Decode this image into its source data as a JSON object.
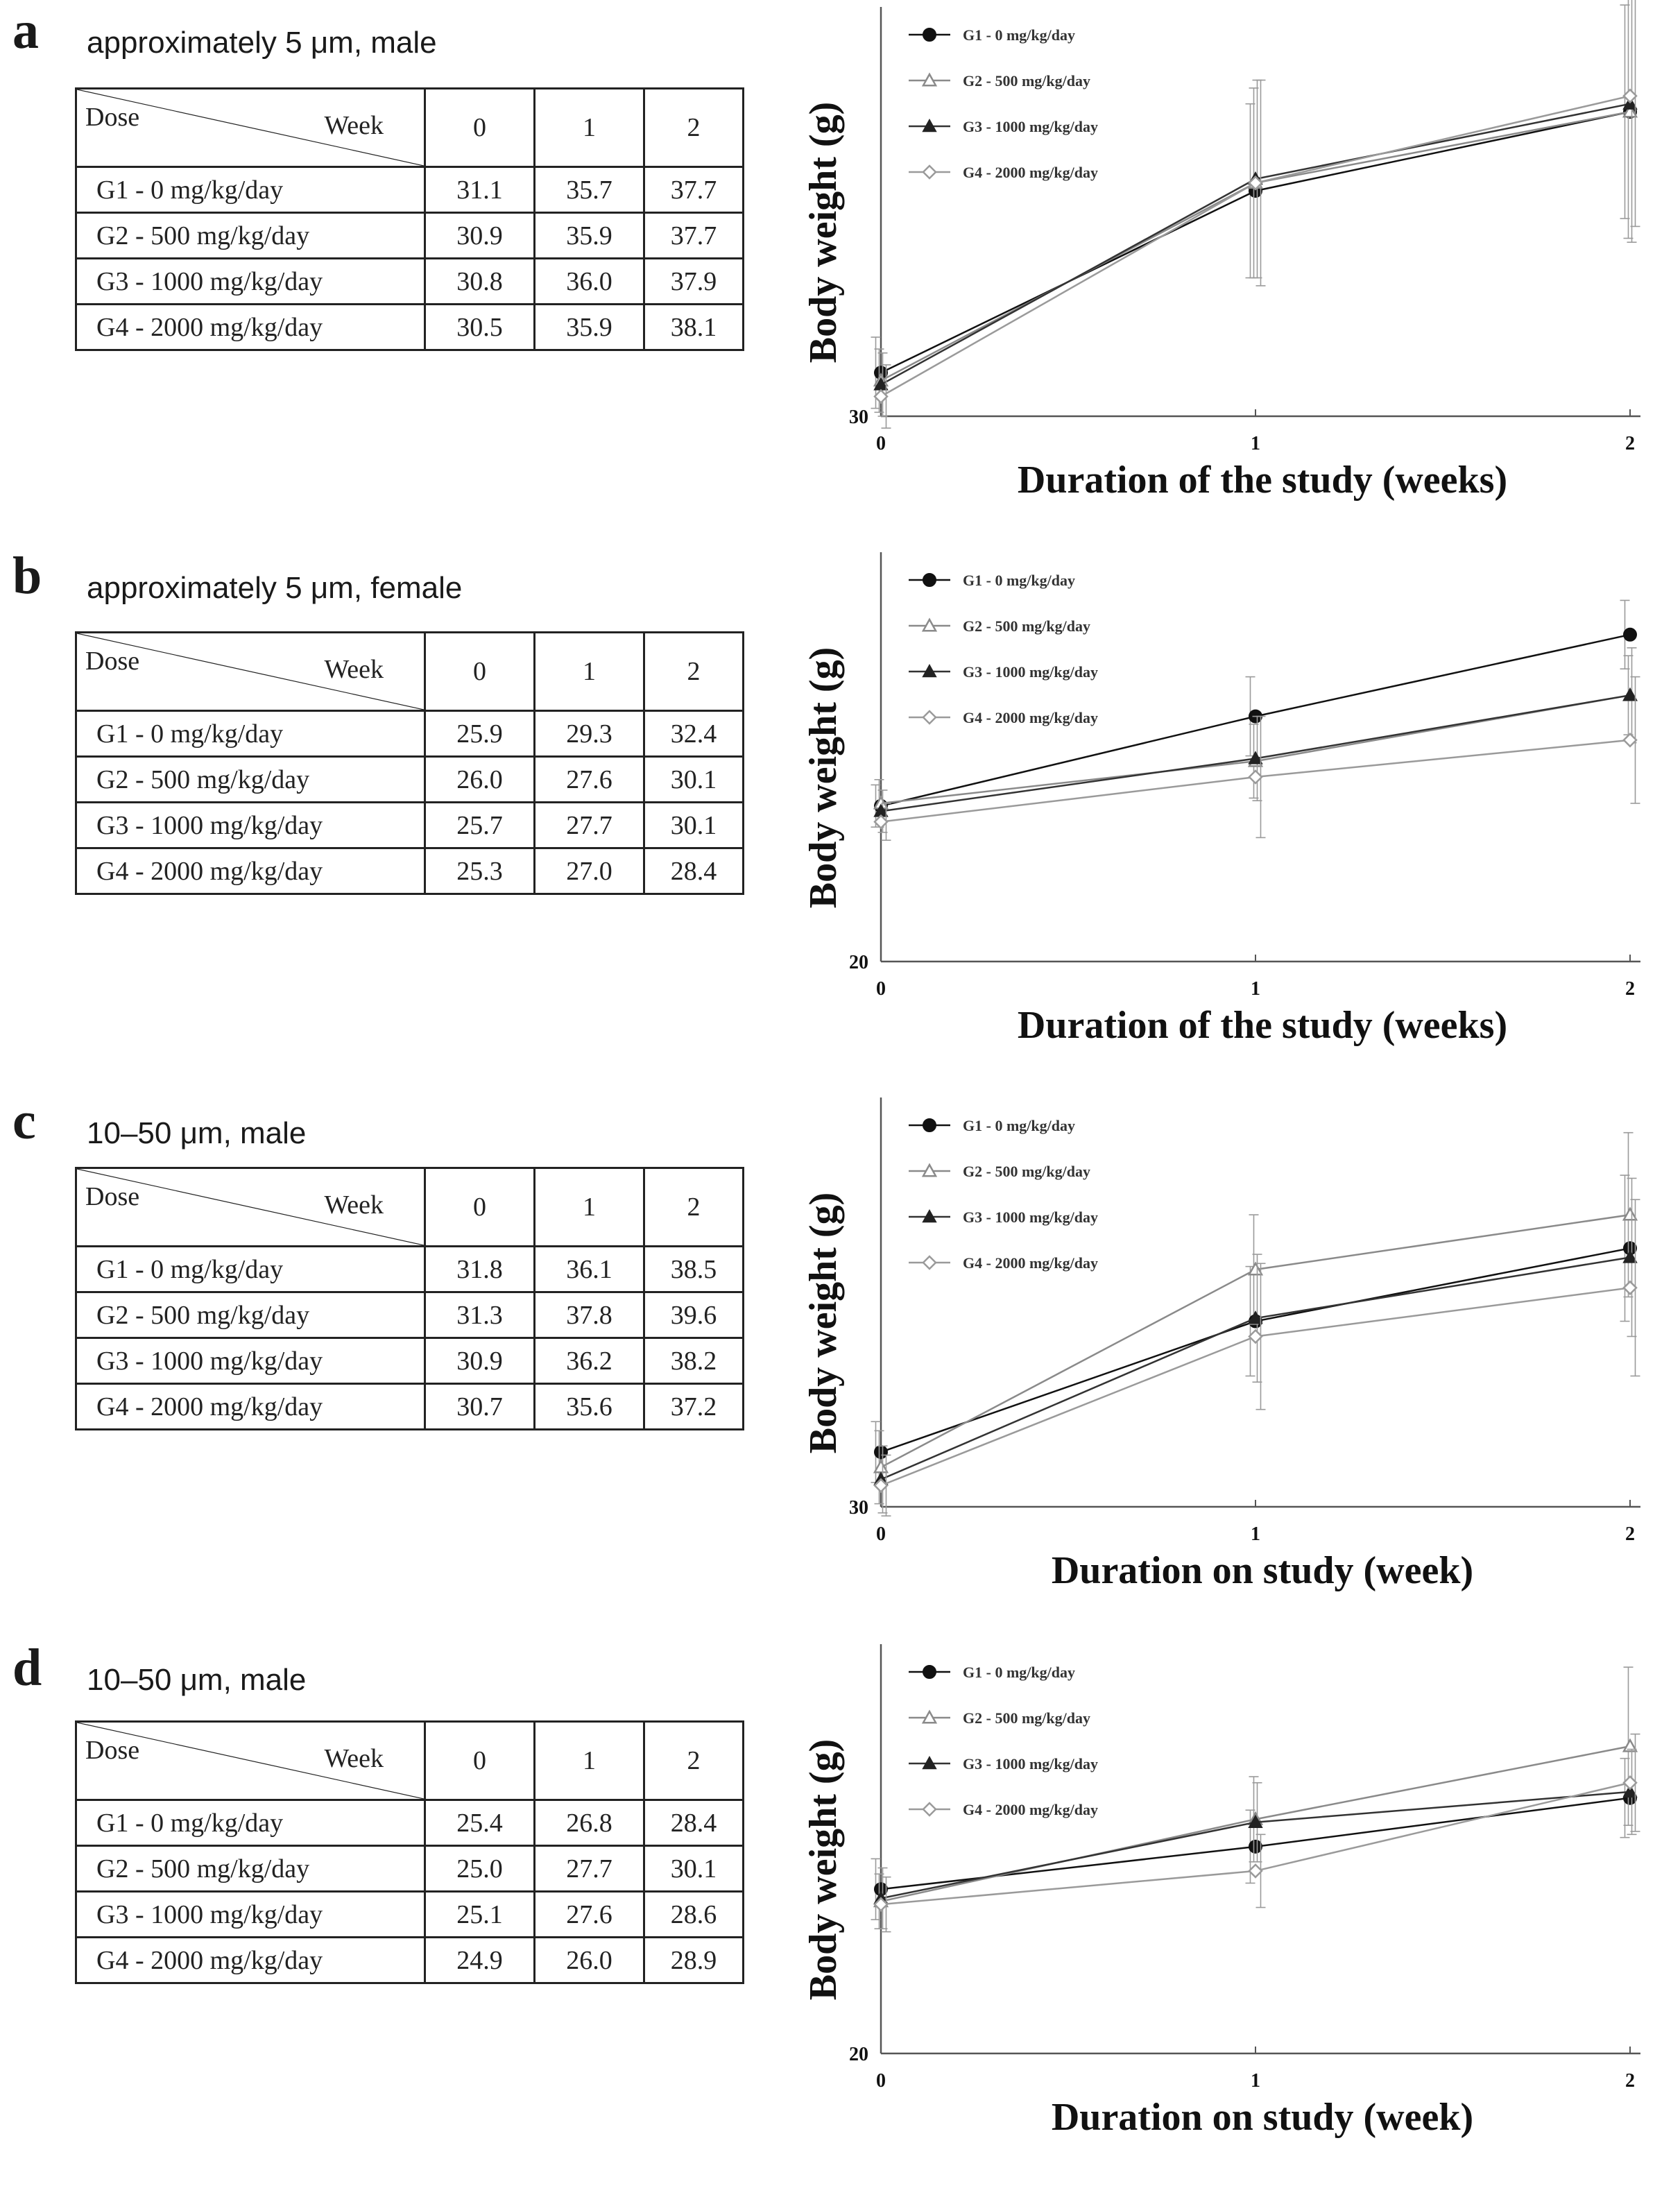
{
  "panels": [
    {
      "label": "a",
      "title": "approximately 5 μm, male",
      "table": {
        "corner_dose": "Dose",
        "corner_week": "Week",
        "weeks": [
          "0",
          "1",
          "2"
        ],
        "rows": [
          {
            "dose": "G1 - 0 mg/kg/day",
            "values": [
              "31.1",
              "35.7",
              "37.7"
            ]
          },
          {
            "dose": "G2 - 500 mg/kg/day",
            "values": [
              "30.9",
              "35.9",
              "37.7"
            ]
          },
          {
            "dose": "G3 - 1000 mg/kg/day",
            "values": [
              "30.8",
              "36.0",
              "37.9"
            ]
          },
          {
            "dose": "G4 - 2000 mg/kg/day",
            "values": [
              "30.5",
              "35.9",
              "38.1"
            ]
          }
        ]
      }
    },
    {
      "label": "b",
      "title": "approximately 5 μm, female",
      "table": {
        "corner_dose": "Dose",
        "corner_week": "Week",
        "weeks": [
          "0",
          "1",
          "2"
        ],
        "rows": [
          {
            "dose": "G1 - 0 mg/kg/day",
            "values": [
              "25.9",
              "29.3",
              "32.4"
            ]
          },
          {
            "dose": "G2 - 500 mg/kg/day",
            "values": [
              "26.0",
              "27.6",
              "30.1"
            ]
          },
          {
            "dose": "G3 - 1000 mg/kg/day",
            "values": [
              "25.7",
              "27.7",
              "30.1"
            ]
          },
          {
            "dose": "G4 - 2000 mg/kg/day",
            "values": [
              "25.3",
              "27.0",
              "28.4"
            ]
          }
        ]
      }
    },
    {
      "label": "c",
      "title": "10–50 μm, male",
      "table": {
        "corner_dose": "Dose",
        "corner_week": "Week",
        "weeks": [
          "0",
          "1",
          "2"
        ],
        "rows": [
          {
            "dose": "G1 - 0 mg/kg/day",
            "values": [
              "31.8",
              "36.1",
              "38.5"
            ]
          },
          {
            "dose": "G2 - 500 mg/kg/day",
            "values": [
              "31.3",
              "37.8",
              "39.6"
            ]
          },
          {
            "dose": "G3 - 1000 mg/kg/day",
            "values": [
              "30.9",
              "36.2",
              "38.2"
            ]
          },
          {
            "dose": "G4 - 2000 mg/kg/day",
            "values": [
              "30.7",
              "35.6",
              "37.2"
            ]
          }
        ]
      }
    },
    {
      "label": "d",
      "title": "10–50 μm, male",
      "table": {
        "corner_dose": "Dose",
        "corner_week": "Week",
        "weeks": [
          "0",
          "1",
          "2"
        ],
        "rows": [
          {
            "dose": "G1 - 0 mg/kg/day",
            "values": [
              "25.4",
              "26.8",
              "28.4"
            ]
          },
          {
            "dose": "G2 - 500 mg/kg/day",
            "values": [
              "25.0",
              "27.7",
              "30.1"
            ]
          },
          {
            "dose": "G3 - 1000 mg/kg/day",
            "values": [
              "25.1",
              "27.6",
              "28.6"
            ]
          },
          {
            "dose": "G4 - 2000 mg/kg/day",
            "values": [
              "24.9",
              "26.0",
              "28.9"
            ]
          }
        ]
      }
    }
  ],
  "chart_data": [
    {
      "type": "line",
      "panel": "a",
      "title": "",
      "xlabel": "Duration of the study (weeks)",
      "ylabel": "Body weight (g)",
      "x": [
        0,
        1,
        2
      ],
      "xticks": [
        "0",
        "1",
        "2"
      ],
      "ylim": [
        30,
        40
      ],
      "yticks": [
        "30"
      ],
      "legend_position": "top-left",
      "series": [
        {
          "name": "G1 - 0 mg/kg/day",
          "marker": "filled-circle",
          "color": "#111111",
          "values": [
            31.1,
            35.7,
            37.7
          ],
          "err": [
            0.9,
            2.2,
            2.7
          ]
        },
        {
          "name": "G2 - 500 mg/kg/day",
          "marker": "open-triangle",
          "color": "#8a8a8a",
          "values": [
            30.9,
            35.9,
            37.7
          ],
          "err": [
            0.8,
            2.4,
            3.2
          ]
        },
        {
          "name": "G3 - 1000 mg/kg/day",
          "marker": "filled-triangle",
          "color": "#333333",
          "values": [
            30.8,
            36.0,
            37.9
          ],
          "err": [
            0.8,
            2.5,
            3.5
          ]
        },
        {
          "name": "G4 - 2000 mg/kg/day",
          "marker": "open-diamond",
          "color": "#9a9a9a",
          "values": [
            30.5,
            35.9,
            38.1
          ],
          "err": [
            0.8,
            2.6,
            3.3
          ]
        }
      ]
    },
    {
      "type": "line",
      "panel": "b",
      "title": "",
      "xlabel": "Duration of the study (weeks)",
      "ylabel": "Body weight (g)",
      "x": [
        0,
        1,
        2
      ],
      "xticks": [
        "0",
        "1",
        "2"
      ],
      "ylim": [
        20,
        35
      ],
      "yticks": [
        "20"
      ],
      "legend_position": "top-left",
      "series": [
        {
          "name": "G1 - 0 mg/kg/day",
          "marker": "filled-circle",
          "color": "#111111",
          "values": [
            25.9,
            29.3,
            32.4
          ],
          "err": [
            0.8,
            1.5,
            1.3
          ]
        },
        {
          "name": "G2 - 500 mg/kg/day",
          "marker": "open-triangle",
          "color": "#8a8a8a",
          "values": [
            26.0,
            27.6,
            30.1
          ],
          "err": [
            0.9,
            1.4,
            1.5
          ]
        },
        {
          "name": "G3 - 1000 mg/kg/day",
          "marker": "filled-triangle",
          "color": "#333333",
          "values": [
            25.7,
            27.7,
            30.1
          ],
          "err": [
            0.8,
            1.6,
            1.8
          ]
        },
        {
          "name": "G4 - 2000 mg/kg/day",
          "marker": "open-diamond",
          "color": "#9a9a9a",
          "values": [
            25.3,
            27.0,
            28.4
          ],
          "err": [
            0.7,
            2.3,
            2.4
          ]
        }
      ]
    },
    {
      "type": "line",
      "panel": "c",
      "title": "",
      "xlabel": "Duration on study (week)",
      "ylabel": "Body weight (g)",
      "x": [
        0,
        1,
        2
      ],
      "xticks": [
        "0",
        "1",
        "2"
      ],
      "ylim": [
        30,
        43
      ],
      "yticks": [
        "30"
      ],
      "legend_position": "top-left",
      "series": [
        {
          "name": "G1 - 0 mg/kg/day",
          "marker": "filled-circle",
          "color": "#111111",
          "values": [
            31.8,
            36.1,
            38.5
          ],
          "err": [
            1.0,
            1.8,
            2.4
          ]
        },
        {
          "name": "G2 - 500 mg/kg/day",
          "marker": "open-triangle",
          "color": "#8a8a8a",
          "values": [
            31.3,
            37.8,
            39.6
          ],
          "err": [
            1.2,
            1.8,
            2.7
          ]
        },
        {
          "name": "G3 - 1000 mg/kg/day",
          "marker": "filled-triangle",
          "color": "#333333",
          "values": [
            30.9,
            36.2,
            38.2
          ],
          "err": [
            1.1,
            2.1,
            2.6
          ]
        },
        {
          "name": "G4 - 2000 mg/kg/day",
          "marker": "open-diamond",
          "color": "#9a9a9a",
          "values": [
            30.7,
            35.6,
            37.2
          ],
          "err": [
            1.0,
            2.4,
            2.9
          ]
        }
      ]
    },
    {
      "type": "line",
      "panel": "d",
      "title": "",
      "xlabel": "Duration on study (week)",
      "ylabel": "Body weight (g)",
      "x": [
        0,
        1,
        2
      ],
      "xticks": [
        "0",
        "1",
        "2"
      ],
      "ylim": [
        20,
        33
      ],
      "yticks": [
        "20"
      ],
      "legend_position": "top-left",
      "series": [
        {
          "name": "G1 - 0 mg/kg/day",
          "marker": "filled-circle",
          "color": "#111111",
          "values": [
            25.4,
            26.8,
            28.4
          ],
          "err": [
            1.0,
            1.2,
            1.3
          ]
        },
        {
          "name": "G2 - 500 mg/kg/day",
          "marker": "open-triangle",
          "color": "#8a8a8a",
          "values": [
            25.0,
            27.7,
            30.1
          ],
          "err": [
            0.9,
            1.4,
            2.6
          ]
        },
        {
          "name": "G3 - 1000 mg/kg/day",
          "marker": "filled-triangle",
          "color": "#333333",
          "values": [
            25.1,
            27.6,
            28.6
          ],
          "err": [
            1.0,
            1.3,
            1.4
          ]
        },
        {
          "name": "G4 - 2000 mg/kg/day",
          "marker": "open-diamond",
          "color": "#9a9a9a",
          "values": [
            24.9,
            26.0,
            28.9
          ],
          "err": [
            0.9,
            1.2,
            1.6
          ]
        }
      ]
    }
  ]
}
